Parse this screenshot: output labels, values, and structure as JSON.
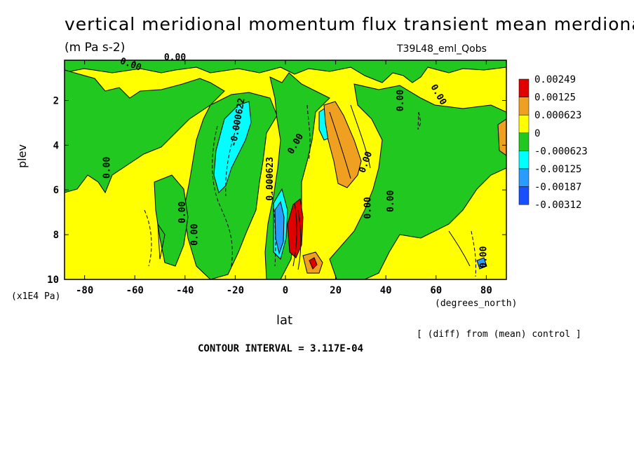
{
  "chart_data": {
    "type": "heatmap",
    "title": "vertical meridional momentum flux transient mean merdional",
    "units": "(m Pa s-2)",
    "run_label": "T39L48_eml_Qobs",
    "xlabel": "lat",
    "x_unit": "(degrees_north)",
    "ylabel": "plev",
    "y_unit": "(x1E4 Pa)",
    "xlim": [
      -88,
      88
    ],
    "ylim": [
      10,
      0.2
    ],
    "x_ticks": [
      "-80",
      "-60",
      "-40",
      "-20",
      "0",
      "20",
      "40",
      "60",
      "80"
    ],
    "x_tick_values": [
      -80,
      -60,
      -40,
      -20,
      0,
      20,
      40,
      60,
      80
    ],
    "y_ticks": [
      "2",
      "4",
      "6",
      "8",
      "10"
    ],
    "y_tick_values": [
      2,
      4,
      6,
      8,
      10
    ],
    "legend": {
      "position": "right",
      "labels": [
        "0.00249",
        "0.00125",
        "0.000623",
        "0",
        "-0.000623",
        "-0.00125",
        "-0.00187",
        "-0.00312"
      ],
      "colors": [
        "#e00000",
        "#f0a020",
        "#ffff00",
        "#20c820",
        "#00ffff",
        "#2a9bff",
        "#1850ff"
      ]
    },
    "contour_labels": [
      "0.00",
      "0.00",
      "0.00",
      "0.00",
      "-0.000622",
      "0.00",
      "0.00",
      "0.000623",
      "0.00",
      "0.00",
      "0.00",
      "0.00",
      "0.00",
      "0.00"
    ],
    "features": [
      {
        "name": "background",
        "level": "0 to 0.000623",
        "color": "#ffff00"
      },
      {
        "name": "green bands",
        "level": "-0.000623 to 0",
        "color": "#20c820"
      },
      {
        "name": "cyan core near -25 lat",
        "level": "-0.00125 to -0.000623",
        "color": "#00ffff"
      },
      {
        "name": "orange core near 20 lat",
        "level": "0.000623 to 0.00125",
        "color": "#f0a020"
      },
      {
        "name": "red core near 5 lat",
        "level": "0.00125 to 0.00249",
        "color": "#e00000"
      },
      {
        "name": "blue core near -2 lat",
        "level": "-0.00187 to -0.00125",
        "color": "#2a9bff"
      }
    ],
    "contour_interval": "CONTOUR INTERVAL = 3.117E-04",
    "diff_note": "[ (diff) from (mean) control ]"
  }
}
